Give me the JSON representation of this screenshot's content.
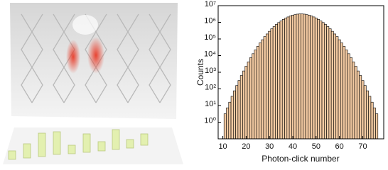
{
  "chart_data": {
    "type": "histogram",
    "x_label": "Photon-click number",
    "y_label": "Counts",
    "bins": [
      10.5,
      11.5,
      12.5,
      13.5,
      14.5,
      15.5,
      16.5,
      17.5,
      18.5,
      19.5,
      20.5,
      21.5,
      22.5,
      23.5,
      24.5,
      25.5,
      26.5,
      27.5,
      28.5,
      29.5,
      30.5,
      31.5,
      32.5,
      33.5,
      34.5,
      35.5,
      36.5,
      37.5,
      38.5,
      39.5,
      40.5,
      41.5,
      42.5,
      43.5,
      44.5,
      45.5,
      46.5,
      47.5,
      48.5,
      49.5,
      50.5,
      51.5,
      52.5,
      53.5,
      54.5,
      55.5,
      56.5,
      57.5,
      58.5,
      59.5,
      60.5,
      61.5,
      62.5,
      63.5,
      64.5,
      65.5,
      66.5,
      67.5,
      68.5,
      69.5,
      70.5,
      71.5,
      72.5,
      73.5,
      74.5,
      75.5,
      76.5
    ],
    "values": [
      3.2,
      7.3,
      16,
      36,
      77,
      160,
      320,
      640,
      1200,
      2300,
      4200,
      7500,
      13000,
      22000,
      36000,
      58000,
      90000,
      140000,
      200000,
      290000,
      410000,
      560000,
      750000,
      970000,
      1200000,
      1500000,
      1800000,
      2100000,
      2400000,
      2700000,
      2900000,
      3100000,
      3200000,
      3200000,
      3100000,
      2900000,
      2700000,
      2400000,
      2100000,
      1800000,
      1500000,
      1200000,
      970000,
      750000,
      560000,
      410000,
      290000,
      200000,
      140000,
      90000,
      58000,
      36000,
      22000,
      13000,
      7500,
      4200,
      2300,
      1200,
      640,
      320,
      160,
      77,
      36,
      16,
      7.3,
      3.2
    ],
    "color": "#f2c9a1",
    "edge_color": "#000000",
    "xlim": [
      8,
      79
    ],
    "xticks": [
      10,
      20,
      30,
      40,
      50,
      60,
      70
    ],
    "y_scale": "log",
    "ylim": [
      0.1,
      10000000
    ],
    "yticks": [
      {
        "value": 1,
        "label": "10⁰"
      },
      {
        "value": 10,
        "label": "10¹"
      },
      {
        "value": 100,
        "label": "10²"
      },
      {
        "value": 1000,
        "label": "10³"
      },
      {
        "value": 10000,
        "label": "10⁴"
      },
      {
        "value": 100000,
        "label": "10⁵"
      },
      {
        "value": 1000000,
        "label": "10⁶"
      },
      {
        "value": 10000000,
        "label": "10⁷"
      }
    ]
  }
}
